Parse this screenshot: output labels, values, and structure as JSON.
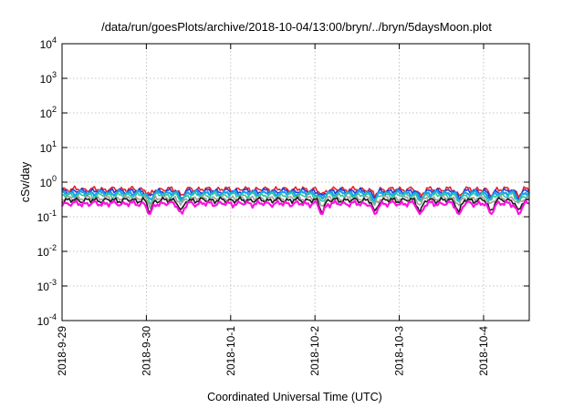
{
  "chart_data": {
    "type": "line",
    "title": "/data/run/goesPlots/archive/2018-10-04/13:00/bryn/../bryn/5daysMoon.plot",
    "xlabel": "Coordinated Universal Time (UTC)",
    "ylabel": "cSv/day",
    "yscale": "log",
    "ylim": [
      0.0001,
      10000
    ],
    "y_ticks": [
      {
        "base": "10",
        "exp": "4",
        "value": 10000
      },
      {
        "base": "10",
        "exp": "3",
        "value": 1000
      },
      {
        "base": "10",
        "exp": "2",
        "value": 100
      },
      {
        "base": "10",
        "exp": "1",
        "value": 10
      },
      {
        "base": "10",
        "exp": "0",
        "value": 1
      },
      {
        "base": "10",
        "exp": "-1",
        "value": 0.1
      },
      {
        "base": "10",
        "exp": "-2",
        "value": 0.01
      },
      {
        "base": "10",
        "exp": "-3",
        "value": 0.001
      },
      {
        "base": "10",
        "exp": "-4",
        "value": 0.0001
      }
    ],
    "xlim": [
      "2018-09-29",
      "2018-10-04T13:00"
    ],
    "x_ticks": [
      "2018-9-29",
      "2018-9-30",
      "2018-10-1",
      "2018-10-2",
      "2018-10-3",
      "2018-10-4"
    ],
    "grid": true,
    "series_colors": [
      "#e8202a",
      "#1e3cd6",
      "#19a0f0",
      "#2ec89a",
      "#a0a0a0",
      "#1a1a1a",
      "#ff10e0"
    ],
    "series_levels": [
      0.62,
      0.55,
      0.48,
      0.42,
      0.34,
      0.3,
      0.24
    ],
    "dips": [
      "2018-9-30T01:00",
      "2018-9-30T10:00",
      "2018-10-2T02:00",
      "2018-10-2T17:00",
      "2018-10-3T06:00",
      "2018-10-3T17:00",
      "2018-10-4T02:00",
      "2018-10-4T10:00"
    ]
  }
}
